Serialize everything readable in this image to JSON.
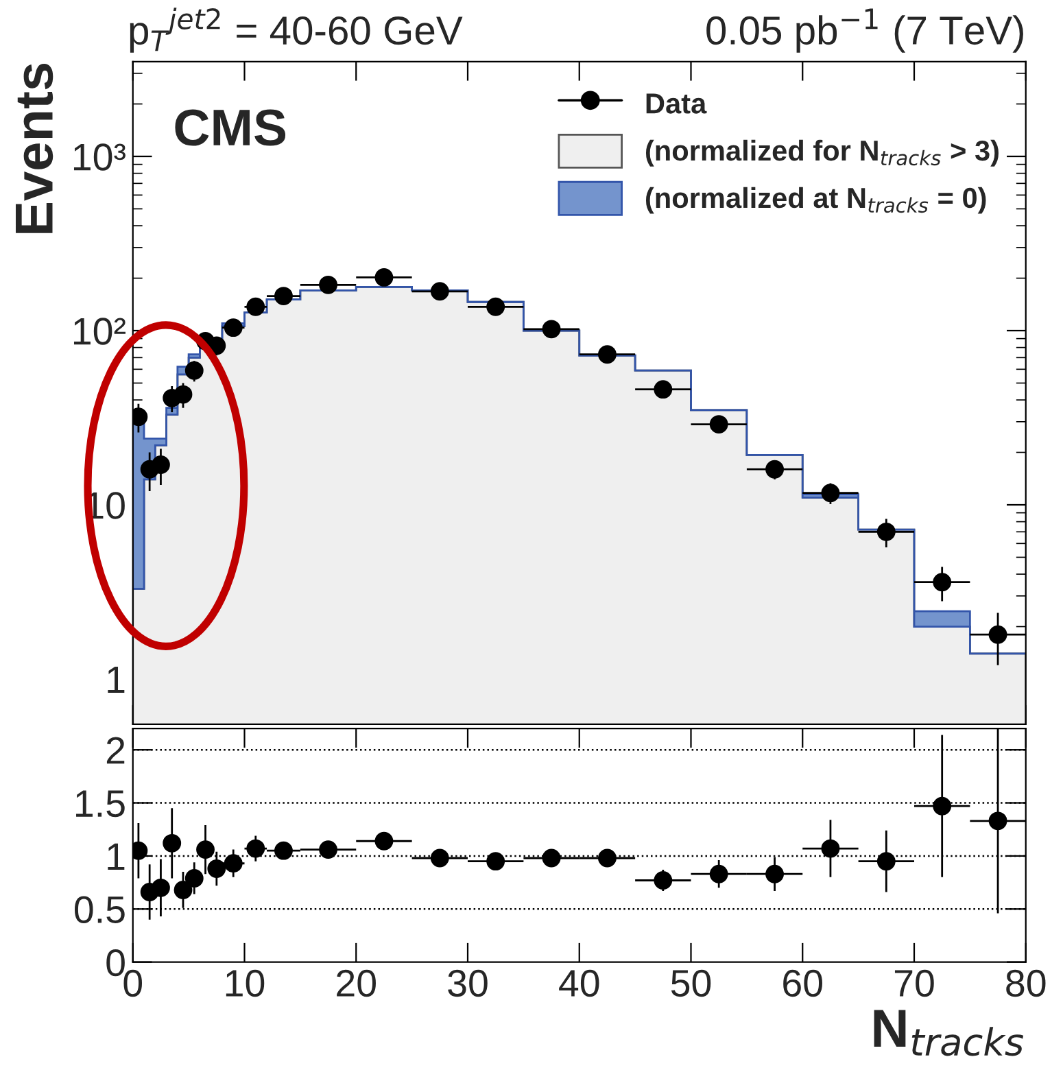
{
  "chart_data": [
    {
      "type": "histogram",
      "title": "p$_{T}$$^{jet2}$ = 40-60 GeV",
      "subtitle": "0.05 pb$^{−1}$ (7 TeV)",
      "ylabel": "Events",
      "annotations": [
        "CMS"
      ],
      "bins": [
        0,
        1,
        2,
        3,
        4,
        5,
        6,
        7,
        8,
        10,
        12,
        15,
        20,
        25,
        30,
        35,
        40,
        45,
        50,
        55,
        60,
        65,
        70,
        75,
        80
      ],
      "series": [
        {
          "name": "Data",
          "type": "scatter",
          "color": "#000000",
          "x": [
            0.5,
            1.5,
            2.5,
            3.5,
            4.5,
            5.5,
            6.5,
            7.5,
            9,
            11,
            13.5,
            17.5,
            22.5,
            27.5,
            32.5,
            37.5,
            42.5,
            47.5,
            52.5,
            57.5,
            62.5,
            67.5,
            72.5,
            77.5
          ],
          "values": [
            32,
            16,
            17,
            41,
            43,
            59,
            87,
            82,
            104,
            137,
            158,
            183,
            202,
            168,
            137,
            102,
            73,
            46,
            29,
            16,
            11.7,
            7.0,
            3.6,
            1.8
          ],
          "errors": [
            6,
            4,
            4,
            7,
            7,
            8,
            10,
            10,
            7,
            7,
            6,
            5,
            5,
            5,
            4,
            4,
            3.5,
            3,
            2.5,
            2,
            1.6,
            1.3,
            0.8,
            0.6
          ],
          "xerrors": [
            0.5,
            0.5,
            0.5,
            0.5,
            0.5,
            0.5,
            0.5,
            0.5,
            1,
            1,
            1.5,
            2.5,
            2.5,
            2.5,
            2.5,
            2.5,
            2.5,
            2.5,
            2.5,
            2.5,
            2.5,
            2.5,
            2.5,
            2.5
          ]
        },
        {
          "name": "(normalized for N$_{tracks}$ > 3)",
          "type": "histogram",
          "color": "#efefef",
          "values": [
            3.3,
            14,
            22,
            33,
            56,
            70,
            87,
            87,
            106,
            127,
            151,
            170,
            178,
            170,
            146,
            100,
            72,
            59,
            35,
            19.3,
            11,
            7.2,
            2.0,
            1.4
          ]
        },
        {
          "name": "(normalized at N$_{tracks}$ = 0)",
          "type": "histogram",
          "color": "#7494cd",
          "values": [
            30.7,
            24,
            24,
            36,
            62,
            73,
            87,
            87,
            110,
            127,
            151,
            170,
            178,
            170,
            146,
            100,
            72,
            59,
            35,
            19.3,
            11.5,
            7.2,
            2.45,
            1.4
          ]
        }
      ],
      "log": "y",
      "xlim": [
        0,
        80
      ],
      "xticks": [
        0,
        10,
        20,
        30,
        40,
        50,
        60,
        70,
        80
      ],
      "ylim": [
        0.55,
        3500
      ],
      "yticks": [
        {
          "value": 1,
          "label": "1"
        },
        {
          "value": 10,
          "label": "10"
        },
        {
          "value": 100,
          "label": "10²"
        },
        {
          "value": 1000,
          "label": "10³"
        }
      ],
      "legend": "top right",
      "marker": "circle",
      "tick_labels": "y"
    },
    {
      "type": "scatter",
      "xlabel": "N$_{tracks}$",
      "series": [
        {
          "color": "#000000",
          "x": [
            0.5,
            1.5,
            2.5,
            3.5,
            4.5,
            5.5,
            6.5,
            7.5,
            9,
            11,
            13.5,
            17.5,
            22.5,
            27.5,
            32.5,
            37.5,
            42.5,
            47.5,
            52.5,
            57.5,
            62.5,
            67.5,
            72.5,
            77.5
          ],
          "values": [
            1.05,
            0.66,
            0.7,
            1.12,
            0.68,
            0.79,
            1.06,
            0.88,
            0.93,
            1.07,
            1.05,
            1.06,
            1.14,
            0.98,
            0.95,
            0.98,
            0.98,
            0.77,
            0.83,
            0.83,
            1.07,
            0.95,
            1.47,
            1.33
          ],
          "errors": [
            0.26,
            0.26,
            0.27,
            0.33,
            0.17,
            0.15,
            0.23,
            0.16,
            0.13,
            0.12,
            0.08,
            0.06,
            0.06,
            0.05,
            0.05,
            0.06,
            0.06,
            0.1,
            0.13,
            0.16,
            0.27,
            0.29,
            0.67,
            0.87
          ],
          "xerrors": [
            0.5,
            0.5,
            0.5,
            0.5,
            0.5,
            0.5,
            0.5,
            0.5,
            1,
            1,
            1.5,
            2.5,
            2.5,
            2.5,
            2.5,
            2.5,
            2.5,
            2.5,
            2.5,
            2.5,
            2.5,
            2.5,
            2.5,
            2.5
          ]
        }
      ],
      "xlim": [
        0,
        80
      ],
      "xticks": [
        0,
        10,
        20,
        30,
        40,
        50,
        60,
        70,
        80
      ],
      "ylim": [
        0,
        2.2
      ],
      "yticks": [
        0,
        0.5,
        1,
        1.5,
        2
      ],
      "ref_lines": [
        {
          "axis": "y",
          "value": 0.5,
          "line_style": "dotted"
        },
        {
          "axis": "y",
          "value": 1,
          "line_style": "dotted"
        },
        {
          "axis": "y",
          "value": 1.5,
          "line_style": "dotted"
        },
        {
          "axis": "y",
          "value": 2,
          "line_style": "dotted"
        }
      ],
      "marker": "circle"
    }
  ]
}
